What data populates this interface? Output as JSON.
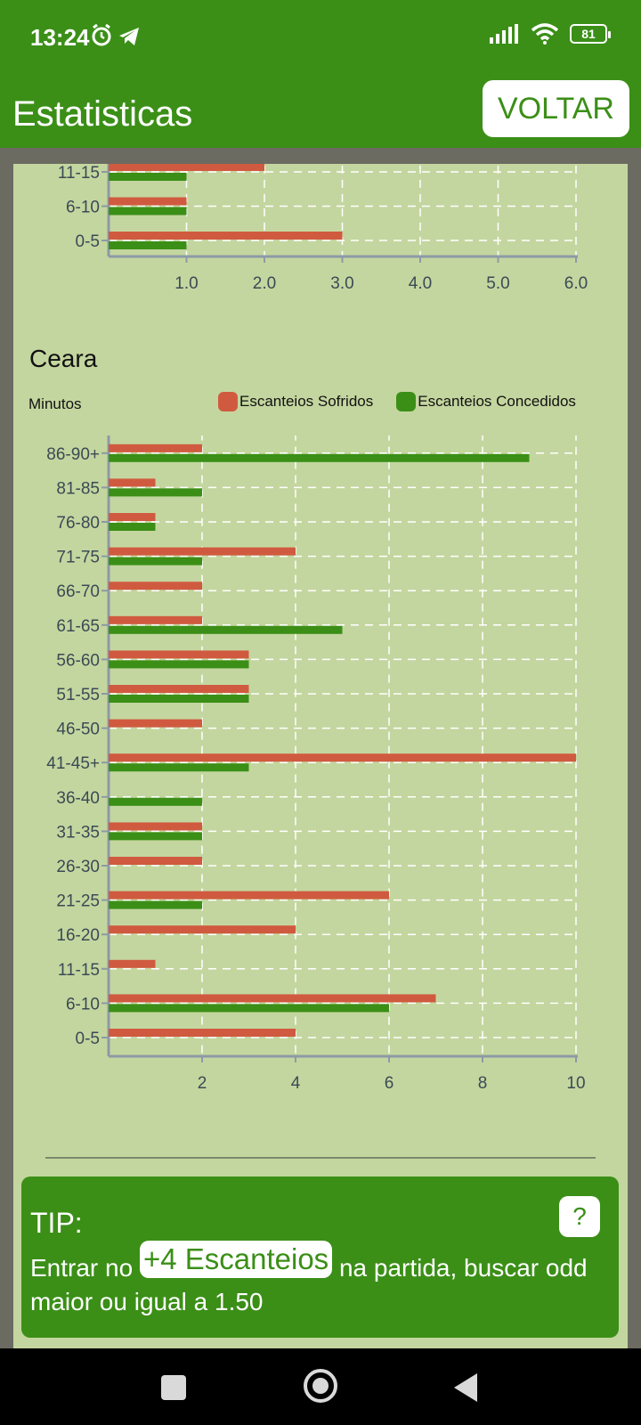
{
  "status_bar": {
    "time": "13:24",
    "battery": "81",
    "icons": [
      "alarm-icon",
      "telegram-icon",
      "signal-icon",
      "wifi-icon",
      "battery-icon"
    ]
  },
  "app_bar": {
    "title": "Estatisticas",
    "back_label": "VOLTAR"
  },
  "colors": {
    "primary": "#3b8f17",
    "background": "#c4d69f",
    "sofridos": "#d05a3f",
    "concedidos": "#3b8f17"
  },
  "top_chart": {
    "chart_data": {
      "type": "bar",
      "orientation": "horizontal",
      "categories": [
        "0-5",
        "6-10",
        "11-15"
      ],
      "series": [
        {
          "name": "Escanteios Sofridos",
          "values": [
            3,
            1,
            2
          ]
        },
        {
          "name": "Escanteios Concedidos",
          "values": [
            1,
            1,
            1
          ]
        }
      ],
      "x_ticks": [
        "1.0",
        "2.0",
        "3.0",
        "4.0",
        "5.0",
        "6.0"
      ],
      "xlim": [
        0,
        6
      ],
      "grid": true
    }
  },
  "ceara_section": {
    "title": "Ceara",
    "axis_label": "Minutos",
    "legend": [
      {
        "label": "Escanteios Sofridos",
        "color": "#d05a3f"
      },
      {
        "label": "Escanteios Concedidos",
        "color": "#3b8f17"
      }
    ]
  },
  "chart_data": {
    "type": "bar",
    "orientation": "horizontal",
    "title": "Ceara",
    "ylabel": "Minutos",
    "categories": [
      "0-5",
      "6-10",
      "11-15",
      "16-20",
      "21-25",
      "26-30",
      "31-35",
      "36-40",
      "41-45+",
      "46-50",
      "51-55",
      "56-60",
      "61-65",
      "66-70",
      "71-75",
      "76-80",
      "81-85",
      "86-90+"
    ],
    "series": [
      {
        "name": "Escanteios Sofridos",
        "values": [
          4,
          7,
          1,
          4,
          6,
          2,
          2,
          0,
          10,
          2,
          3,
          3,
          2,
          2,
          4,
          1,
          1,
          2
        ]
      },
      {
        "name": "Escanteios Concedidos",
        "values": [
          0,
          6,
          0,
          0,
          2,
          0,
          2,
          2,
          3,
          0,
          3,
          3,
          5,
          0,
          2,
          1,
          2,
          9
        ]
      }
    ],
    "x_ticks": [
      "2",
      "4",
      "6",
      "8",
      "10"
    ],
    "xlim": [
      0,
      10
    ],
    "grid": true,
    "legend_position": "top-right"
  },
  "tip": {
    "title": "TIP:",
    "help_label": "?",
    "text_before": "Entrar no ",
    "highlight": "+4 Escanteios",
    "text_after": " na partida, buscar odd maior ou igual a 1.50"
  }
}
